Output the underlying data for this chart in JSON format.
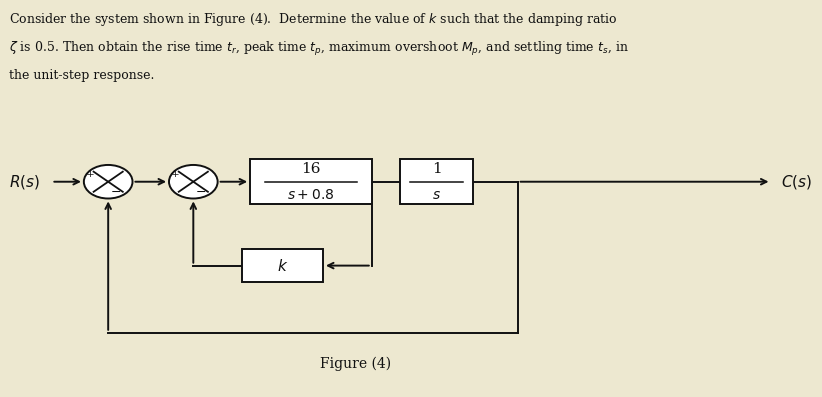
{
  "bg_color": "#ede8d0",
  "text_color": "#111111",
  "title_text_lines": [
    "Consider the system shown in Figure (4).  Determine the value of $k$ such that the damping ratio",
    "$\\zeta$ is 0.5. Then obtain the rise time $t_r$, peak time $t_p$, maximum overshoot $M_p$, and settling time $t_s$, in",
    "the unit-step response."
  ],
  "figure_label": "Figure (4)",
  "R_label": "$R(s)$",
  "C_label": "$C(s)$",
  "block1_num": "16",
  "block1_den": "$s +0.8$",
  "block2_num": "1",
  "block2_den": "$s$",
  "block3_label": "$k$",
  "line_color": "#111111",
  "box_facecolor": "#ffffff",
  "box_edgecolor": "#111111",
  "figsize": [
    8.22,
    3.97
  ],
  "dpi": 100
}
